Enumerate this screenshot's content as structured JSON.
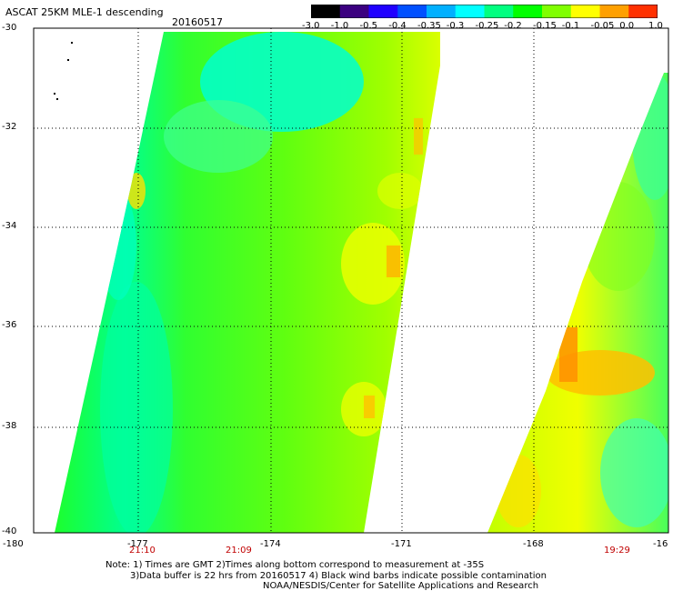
{
  "title": "ASCAT 25KM MLE-1 descending",
  "date": "20160517",
  "colorbar": {
    "labels": [
      "-3.0",
      "-1.0",
      "-0.5",
      "-0.4",
      "-0.35",
      "-0.3",
      "-0.25",
      "-0.2",
      "-0.15",
      "-0.1",
      "-0.05",
      "0.0",
      "1.0"
    ],
    "colors": [
      "#000000",
      "#3b0080",
      "#2000ff",
      "#0050ff",
      "#00b0ff",
      "#00ffff",
      "#00ff80",
      "#00ff00",
      "#80ff00",
      "#ffff00",
      "#ffa000",
      "#ff3000"
    ]
  },
  "lat_labels": [
    "-30",
    "-32",
    "-34",
    "-36",
    "-38",
    "-40"
  ],
  "lon_labels": [
    "-180",
    "-177",
    "-174",
    "-171",
    "-168",
    "-16"
  ],
  "time_labels": [
    "21:10",
    "21:09",
    "19:29"
  ],
  "note": {
    "line1": "Note: 1) Times are GMT 2)Times along bottom correspond to measurement at -35S",
    "line2": "3)Data buffer is 22 hrs from 20160517 4) Black wind barbs indicate possible contamination",
    "line3": "NOAA/NESDIS/Center for Satellite Applications and Research"
  }
}
